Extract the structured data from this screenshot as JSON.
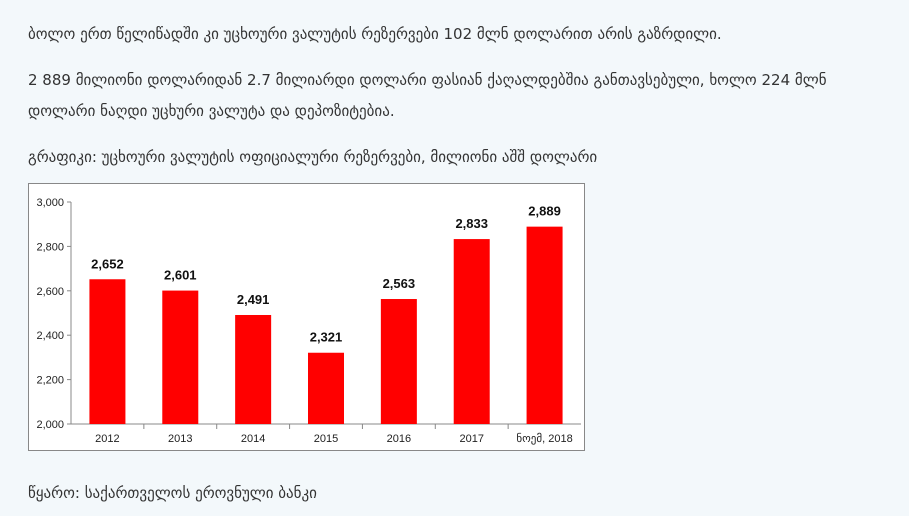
{
  "text": {
    "para1": "ბოლო ერთ წელიწადში კი უცხოური ვალუტის რეზერვები 102 მლნ დოლარით არის გაზრდილი.",
    "para2_line1": "2 889 მილიონი დოლარიდან 2.7 მილიარდი დოლარი ფასიან ქაღალდებშია განთავსებული, ხოლო 224 მლნ",
    "para2_line2": "დოლარი ნაღდი უცხური ვალუტა და დეპოზიტებია.",
    "chart_caption": "გრაფიკი: უცხოური ვალუტის ოფიციალური რეზერვები, მილიონი აშშ დოლარი",
    "source": "წყარო: საქართველოს ეროვნული ბანკი"
  },
  "colors": {
    "bar": "#ff0000",
    "background": "#f3f8fb"
  },
  "chart_data": {
    "type": "bar",
    "categories": [
      "2012",
      "2013",
      "2014",
      "2015",
      "2016",
      "2017",
      "ნოემ, 2018"
    ],
    "values": [
      2652,
      2601,
      2491,
      2321,
      2563,
      2833,
      2889
    ],
    "value_labels": [
      "2,652",
      "2,601",
      "2,491",
      "2,321",
      "2,563",
      "2,833",
      "2,889"
    ],
    "yticks": [
      "2,000",
      "2,200",
      "2,400",
      "2,600",
      "2,800",
      "3,000"
    ],
    "ylim": [
      2000,
      3000
    ],
    "grid": false,
    "legend": "none"
  }
}
